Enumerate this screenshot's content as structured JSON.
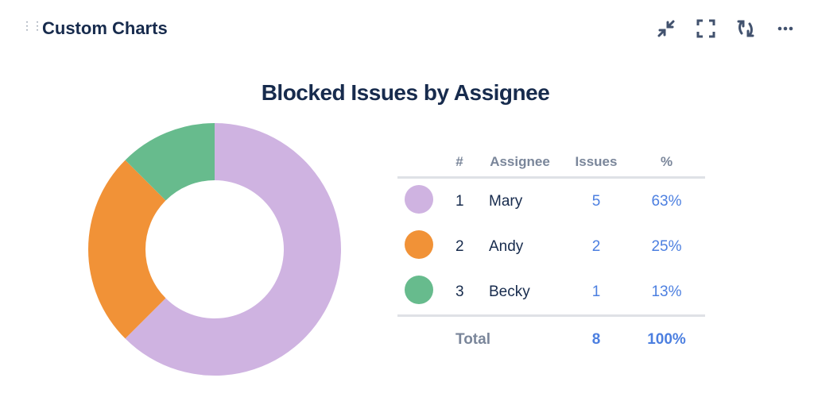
{
  "header": {
    "title": "Custom Charts",
    "icons": [
      "collapse-icon",
      "fullscreen-icon",
      "refresh-icon",
      "more-icon"
    ]
  },
  "chart_data": {
    "type": "pie",
    "title": "Blocked Issues by Assignee",
    "columns": [
      "#",
      "Assignee",
      "Issues",
      "%"
    ],
    "rows": [
      {
        "rank": "1",
        "name": "Mary",
        "value": 5,
        "pct": "63%",
        "color": "#cfb3e1"
      },
      {
        "rank": "2",
        "name": "Andy",
        "value": 2,
        "pct": "25%",
        "color": "#f19237"
      },
      {
        "rank": "3",
        "name": "Becky",
        "value": 1,
        "pct": "13%",
        "color": "#67bb8d"
      }
    ],
    "total": {
      "label": "Total",
      "value": "8",
      "pct": "100%"
    }
  }
}
